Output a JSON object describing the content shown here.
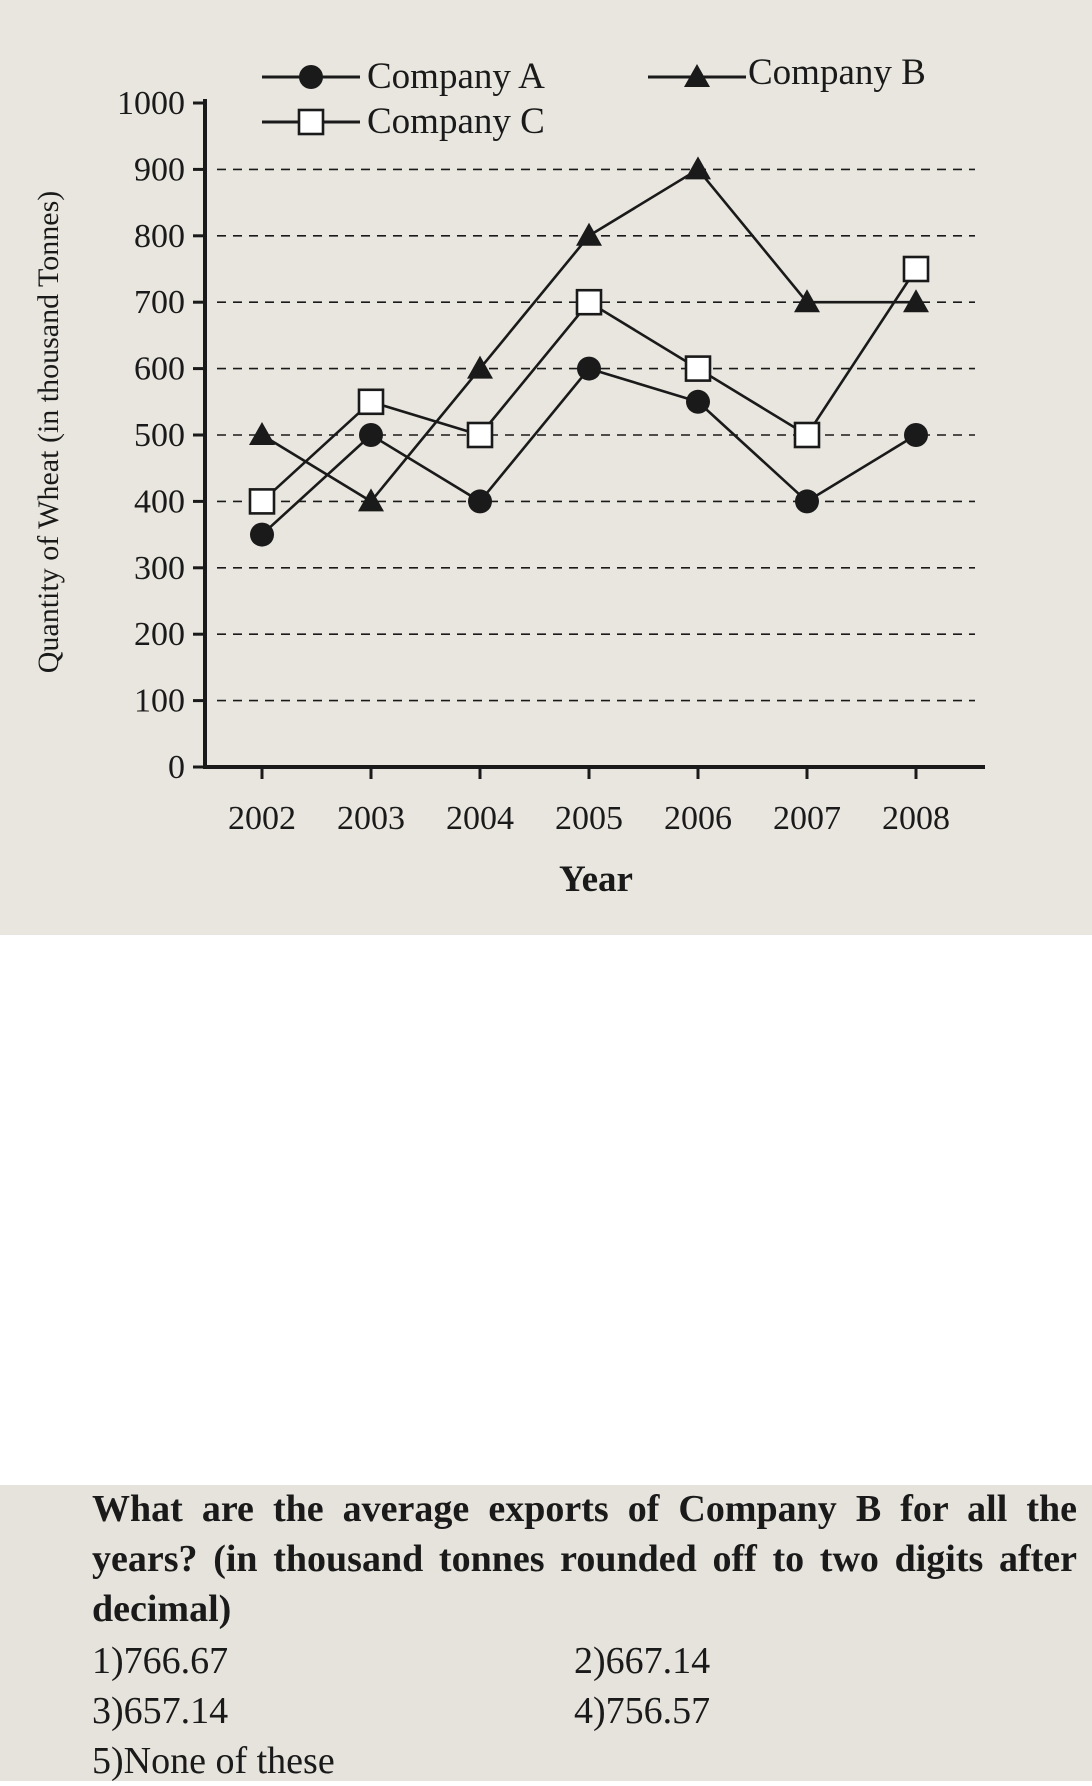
{
  "chart_data": {
    "type": "line",
    "title": "",
    "xlabel": "Year",
    "ylabel": "Quantity of Wheat (in thousand Tonnes)",
    "x": [
      "2002",
      "2003",
      "2004",
      "2005",
      "2006",
      "2007",
      "2008"
    ],
    "yticks": [
      0,
      100,
      200,
      300,
      400,
      500,
      600,
      700,
      800,
      900,
      1000
    ],
    "ylim": [
      0,
      1000
    ],
    "grid": "horizontal dashed",
    "legend": "top",
    "series": [
      {
        "name": "Company A",
        "marker": "filled-circle",
        "values": [
          350,
          500,
          400,
          600,
          550,
          400,
          500
        ]
      },
      {
        "name": "Company B",
        "marker": "filled-triangle",
        "values": [
          500,
          400,
          600,
          800,
          900,
          700,
          700
        ]
      },
      {
        "name": "Company C",
        "marker": "open-square",
        "values": [
          400,
          550,
          500,
          700,
          600,
          500,
          750
        ]
      }
    ]
  },
  "question": {
    "text": "What are the average exports of Company B for all the years? (in thousand tonnes rounded off to two digits after decimal)",
    "options": [
      {
        "num": "1)",
        "text": "766.67"
      },
      {
        "num": "2)",
        "text": "667.14"
      },
      {
        "num": "3)",
        "text": "657.14"
      },
      {
        "num": "4)",
        "text": "756.57"
      },
      {
        "num": "5)",
        "text": "None of these"
      }
    ]
  },
  "colors": {
    "ink": "#1a1a1a",
    "panel": "#e9e6df"
  }
}
